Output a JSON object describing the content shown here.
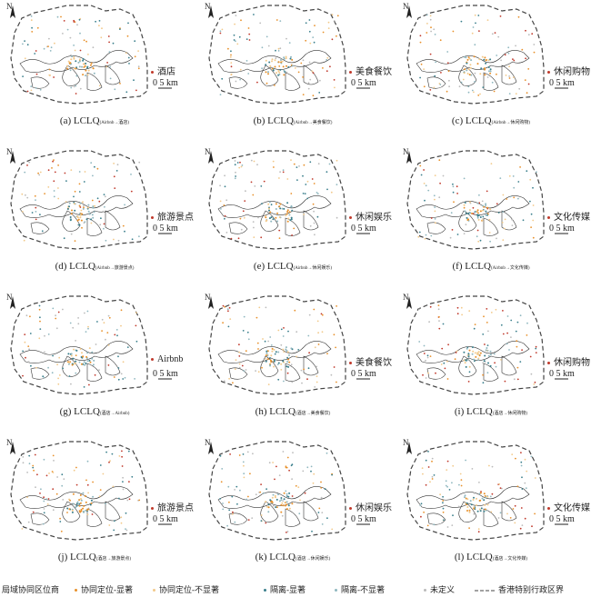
{
  "panels": [
    {
      "caption": "(a) LCLQ",
      "sub": "(Airbnb→酒店)",
      "category": "酒店",
      "scale": "0 5 km",
      "north": "N"
    },
    {
      "caption": "(b) LCLQ",
      "sub": "(Airbnb→美食餐饮)",
      "category": "美食餐饮",
      "scale": "0 5 km",
      "north": "N"
    },
    {
      "caption": "(c) LCLQ",
      "sub": "(Airbnb→休闲购物)",
      "category": "休闲购物",
      "scale": "0 5 km",
      "north": "N"
    },
    {
      "caption": "(d) LCLQ",
      "sub": "(Airbnb→旅游景点)",
      "category": "旅游景点",
      "scale": "0 5 km",
      "north": "N"
    },
    {
      "caption": "(e) LCLQ",
      "sub": "(Airbnb→休闲娱乐)",
      "category": "休闲娱乐",
      "scale": "0 5 km",
      "north": "N"
    },
    {
      "caption": "(f) LCLQ",
      "sub": "(Airbnb→文化传媒)",
      "category": "文化传媒",
      "scale": "0 5 km",
      "north": "N"
    },
    {
      "caption": "(g) LCLQ",
      "sub": "(酒店→Airbnb)",
      "category": "Airbnb",
      "scale": "0 5 km",
      "north": "N"
    },
    {
      "caption": "(h) LCLQ",
      "sub": "(酒店→美食餐饮)",
      "category": "美食餐饮",
      "scale": "0 5 km",
      "north": "N"
    },
    {
      "caption": "(i) LCLQ",
      "sub": "(酒店→休闲购物)",
      "category": "休闲购物",
      "scale": "0 5 km",
      "north": "N"
    },
    {
      "caption": "(j) LCLQ",
      "sub": "(酒店→旅游景点)",
      "category": "旅游景点",
      "scale": "0 5 km",
      "north": "N"
    },
    {
      "caption": "(k) LCLQ",
      "sub": "(酒店→休闲娱乐)",
      "category": "休闲娱乐",
      "scale": "0 5 km",
      "north": "N"
    },
    {
      "caption": "(l) LCLQ",
      "sub": "(酒店→文化传媒)",
      "category": "文化传媒",
      "scale": "0 5 km",
      "north": "N"
    }
  ],
  "legend": {
    "title": "局域协同区位商",
    "items": [
      {
        "label": "协同定位-显著",
        "color": "#e8902a"
      },
      {
        "label": "协同定位-不显著",
        "color": "#f2c98a"
      },
      {
        "label": "隔离-显著",
        "color": "#3a7f8c"
      },
      {
        "label": "隔离-不显著",
        "color": "#8fb7bf"
      },
      {
        "label": "未定义",
        "color": "#bbbbbb"
      }
    ],
    "boundary": "香港特别行政区界"
  },
  "colors": {
    "category_dot": "#c0392b",
    "coast": "#333333",
    "boundary": "#444444"
  }
}
